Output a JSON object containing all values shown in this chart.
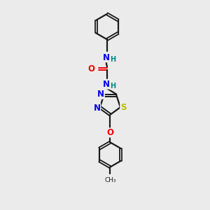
{
  "background_color": "#ebebeb",
  "bond_color": "#1a1a1a",
  "line_width": 1.6,
  "atom_colors": {
    "N": "#0000ee",
    "O": "#ee0000",
    "S": "#bbbb00",
    "H": "#008888",
    "C": "#1a1a1a"
  },
  "font_size_atoms": 8.5,
  "figsize": [
    3.0,
    3.0
  ],
  "dpi": 100,
  "xlim": [
    0,
    6
  ],
  "ylim": [
    0,
    10
  ]
}
